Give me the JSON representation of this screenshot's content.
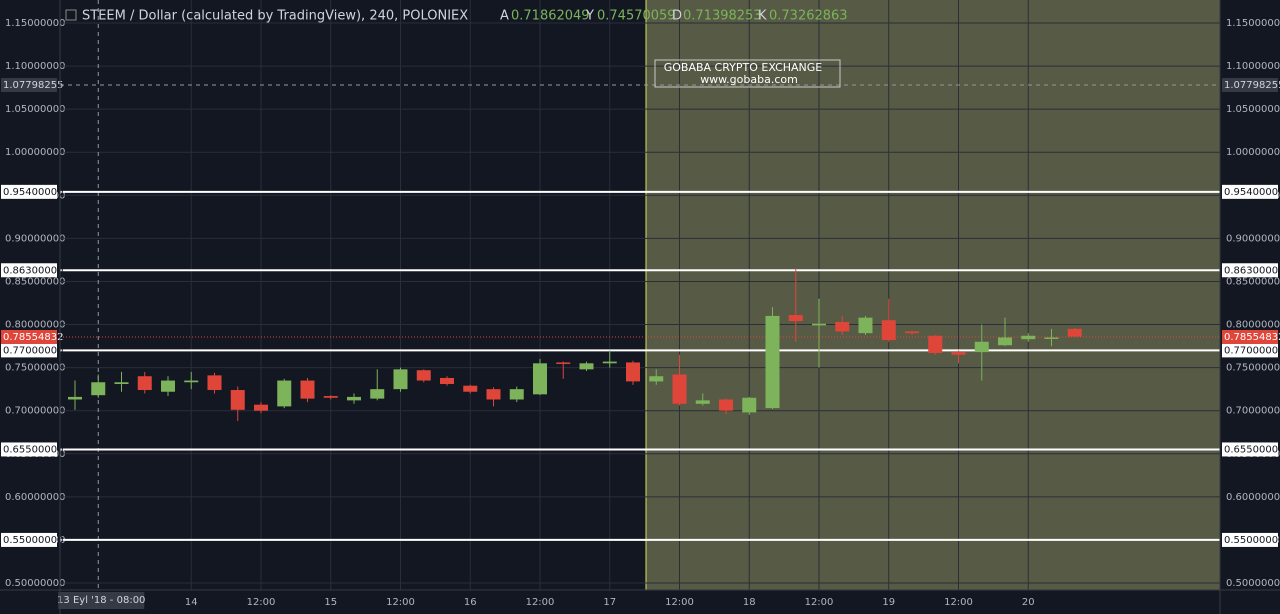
{
  "chart_data": {
    "type": "candlestick",
    "title": "STEEM / Dollar (calculated by TradingView), 240, POLONIEX",
    "ohlc_legend": [
      {
        "label": "A",
        "value": 0.71862049
      },
      {
        "label": "Y",
        "value": 0.74570059
      },
      {
        "label": "D",
        "value": 0.71398253
      },
      {
        "label": "K",
        "value": 0.73262863
      }
    ],
    "watermark": [
      "GOBABA CRYPTO EXCHANGE",
      "www.gobaba.com"
    ],
    "categories": [
      null,
      "13 Eyl '18 - 08:00",
      null,
      null,
      null,
      "14",
      null,
      null,
      "12:00",
      null,
      null,
      "15",
      null,
      null,
      "12:00",
      null,
      null,
      "16",
      null,
      null,
      "12:00",
      null,
      null,
      "17",
      null,
      null,
      "12:00",
      null,
      null,
      "18",
      null,
      null,
      "12:00",
      null,
      null,
      "19",
      null,
      null,
      "12:00",
      null,
      null,
      "20",
      null,
      null
    ],
    "open": [
      0.713,
      0.718,
      0.731,
      0.74,
      0.722,
      0.733,
      0.741,
      0.724,
      0.707,
      0.705,
      0.735,
      0.717,
      0.712,
      0.714,
      0.725,
      0.747,
      0.738,
      0.729,
      0.725,
      0.713,
      0.719,
      0.756,
      0.748,
      0.755,
      0.756,
      0.734,
      0.742,
      0.708,
      0.713,
      0.698,
      0.703,
      0.811,
      0.799,
      0.803,
      0.79,
      0.805,
      0.792,
      0.787,
      0.768,
      0.768,
      0.776,
      0.783,
      0.784,
      0.795
    ],
    "high": [
      0.735,
      0.742,
      0.745,
      0.745,
      0.74,
      0.745,
      0.744,
      0.728,
      0.71,
      0.737,
      0.738,
      0.718,
      0.72,
      0.748,
      0.75,
      0.748,
      0.74,
      0.73,
      0.727,
      0.728,
      0.76,
      0.757,
      0.757,
      0.77,
      0.758,
      0.748,
      0.765,
      0.72,
      0.714,
      0.716,
      0.82,
      0.865,
      0.83,
      0.81,
      0.81,
      0.83,
      0.793,
      0.788,
      0.77,
      0.8,
      0.808,
      0.79,
      0.795,
      0.796
    ],
    "low": [
      0.701,
      0.715,
      0.722,
      0.72,
      0.717,
      0.725,
      0.72,
      0.688,
      0.697,
      0.703,
      0.71,
      0.713,
      0.708,
      0.712,
      0.722,
      0.733,
      0.729,
      0.72,
      0.705,
      0.71,
      0.718,
      0.737,
      0.746,
      0.75,
      0.73,
      0.73,
      0.706,
      0.706,
      0.696,
      0.695,
      0.702,
      0.78,
      0.75,
      0.788,
      0.788,
      0.78,
      0.788,
      0.765,
      0.755,
      0.735,
      0.775,
      0.78,
      0.775,
      0.785
    ],
    "close": [
      0.716,
      0.733,
      0.733,
      0.724,
      0.735,
      0.735,
      0.724,
      0.701,
      0.7,
      0.735,
      0.714,
      0.715,
      0.716,
      0.725,
      0.748,
      0.735,
      0.731,
      0.722,
      0.713,
      0.725,
      0.755,
      0.755,
      0.755,
      0.757,
      0.734,
      0.74,
      0.708,
      0.712,
      0.7,
      0.715,
      0.81,
      0.804,
      0.801,
      0.792,
      0.808,
      0.782,
      0.79,
      0.767,
      0.765,
      0.78,
      0.785,
      0.787,
      0.785,
      0.786
    ],
    "up_color": "#7cb35b",
    "down_color": "#e0453a",
    "ylim": [
      0.5,
      1.15
    ],
    "yticks": [
      {
        "value": 0.5,
        "label": "0.50000000"
      },
      {
        "value": 0.55,
        "label": "0.55000000"
      },
      {
        "value": 0.6,
        "label": "0.60000000"
      },
      {
        "value": 0.65,
        "label": "0.65000000"
      },
      {
        "value": 0.7,
        "label": "0.70000000"
      },
      {
        "value": 0.75,
        "label": "0.75000000"
      },
      {
        "value": 0.8,
        "label": "0.80000000"
      },
      {
        "value": 0.85,
        "label": "0.85000000"
      },
      {
        "value": 0.9,
        "label": "0.90000000"
      },
      {
        "value": 0.95,
        "label": "0.95000000"
      },
      {
        "value": 1.0,
        "label": "1.00000000"
      },
      {
        "value": 1.05,
        "label": "1.05000000"
      },
      {
        "value": 1.1,
        "label": "1.10000000"
      },
      {
        "value": 1.15,
        "label": "1.15000000"
      }
    ],
    "levels": [
      {
        "value": 0.954,
        "label": "0.95400000"
      },
      {
        "value": 0.863,
        "label": "0.86300000"
      },
      {
        "value": 0.77,
        "label": "0.77000000"
      },
      {
        "value": 0.655,
        "label": "0.65500000"
      },
      {
        "value": 0.55,
        "label": "0.55000000"
      }
    ],
    "last_price": 0.78554832,
    "crosshair_price": 1.07798255,
    "grid": true
  }
}
